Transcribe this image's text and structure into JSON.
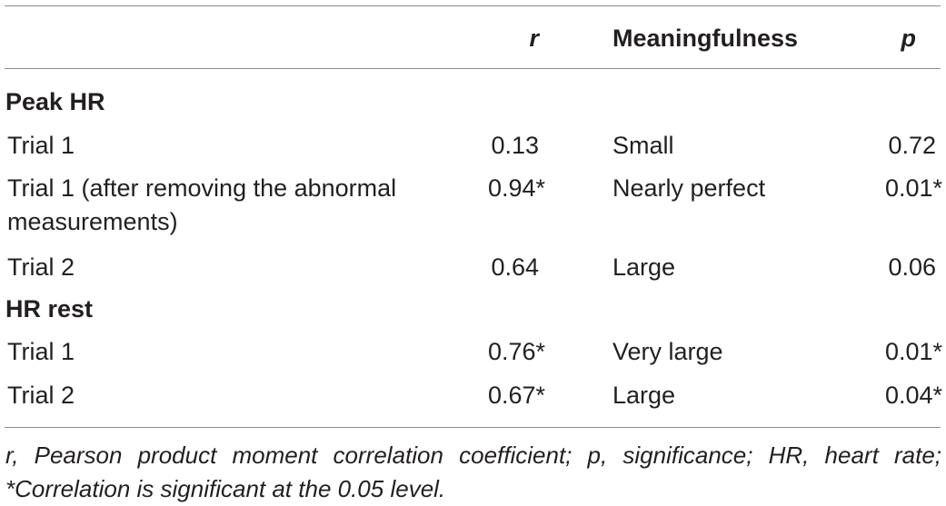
{
  "table": {
    "headers": {
      "r": "r",
      "meaningfulness": "Meaningfulness",
      "p": "p"
    },
    "sections": [
      {
        "title": "Peak HR",
        "rows": [
          {
            "label": "Trial 1",
            "r": "0.13",
            "meaning": "Small",
            "p": "0.72"
          },
          {
            "label_line1": "Trial 1 (after removing the abnormal",
            "label_line2": "measurements)",
            "r": "0.94*",
            "meaning": "Nearly perfect",
            "p": "0.01*"
          },
          {
            "label": "Trial 2",
            "r": "0.64",
            "meaning": "Large",
            "p": "0.06"
          }
        ]
      },
      {
        "title": "HR rest",
        "rows": [
          {
            "label": "Trial 1",
            "r": "0.76*",
            "meaning": "Very large",
            "p": "0.01*"
          },
          {
            "label": "Trial 2",
            "r": "0.67*",
            "meaning": "Large",
            "p": "0.04*"
          }
        ]
      }
    ],
    "footnote": "r, Pearson product moment correlation coefficient; p, significance; HR, heart rate; *Correlation is significant at the 0.05 level."
  }
}
